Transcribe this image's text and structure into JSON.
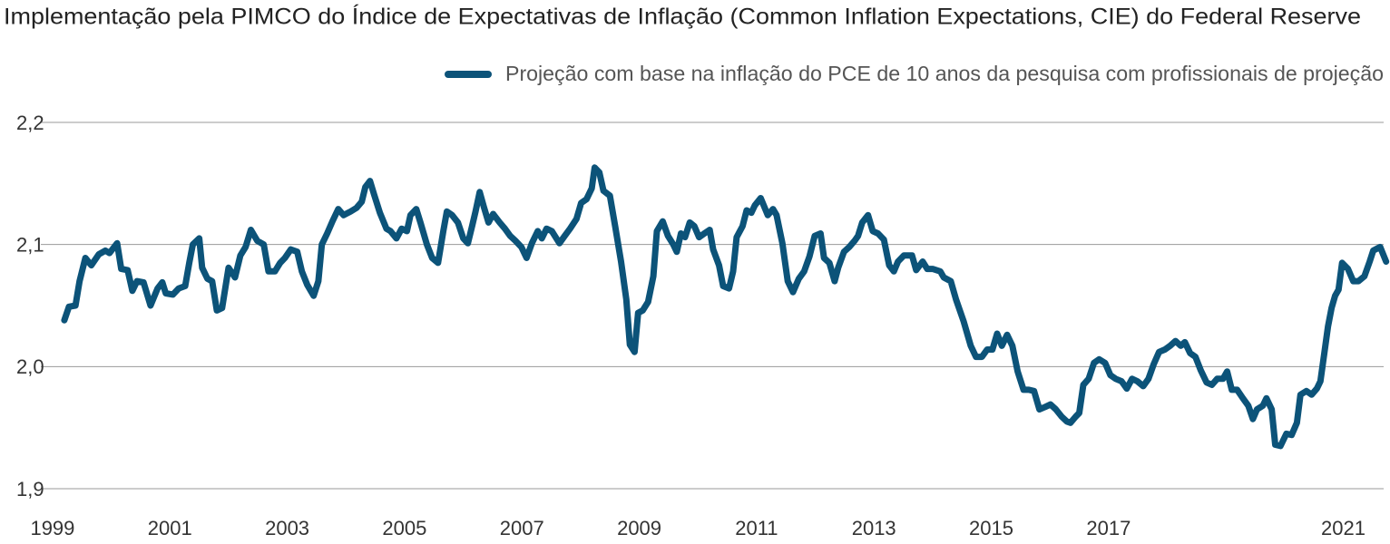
{
  "chart_data": {
    "type": "line",
    "title": "Implementação pela PIMCO do Índice de Expectativas de Inflação (Common Inflation Expectations, CIE) do Federal Reserve",
    "xlim": [
      1998.8,
      2021.75
    ],
    "xticks": [
      1999,
      2001,
      2003,
      2005,
      2007,
      2009,
      2011,
      2013,
      2015,
      2017,
      2021
    ],
    "ylim": [
      1.9,
      2.2
    ],
    "yticks": [
      {
        "value": 1.9,
        "label": "1,9"
      },
      {
        "value": 2.0,
        "label": "2,0"
      },
      {
        "value": 2.1,
        "label": "2,1"
      },
      {
        "value": 2.2,
        "label": "2,2"
      }
    ],
    "grid": true,
    "legend": "top-right",
    "x": [
      1999.2,
      1999.28,
      1999.39,
      1999.46,
      1999.56,
      1999.66,
      1999.79,
      1999.9,
      1999.97,
      2000.1,
      2000.17,
      2000.28,
      2000.36,
      2000.44,
      2000.55,
      2000.67,
      2000.79,
      2000.87,
      2000.93,
      2001.05,
      2001.15,
      2001.26,
      2001.33,
      2001.39,
      2001.5,
      2001.55,
      2001.64,
      2001.72,
      2001.8,
      2001.89,
      2002.0,
      2002.11,
      2002.2,
      2002.29,
      2002.38,
      2002.49,
      2002.6,
      2002.68,
      2002.79,
      2002.88,
      2002.96,
      2003.06,
      2003.17,
      2003.25,
      2003.34,
      2003.45,
      2003.53,
      2003.59,
      2003.68,
      2003.77,
      2003.87,
      2003.96,
      2004.08,
      2004.18,
      2004.27,
      2004.33,
      2004.41,
      2004.48,
      2004.58,
      2004.69,
      2004.76,
      2004.86,
      2004.95,
      2005.04,
      2005.1,
      2005.2,
      2005.27,
      2005.38,
      2005.47,
      2005.57,
      2005.66,
      2005.72,
      2005.81,
      2005.91,
      2006.0,
      2006.08,
      2006.15,
      2006.21,
      2006.28,
      2006.35,
      2006.43,
      2006.51,
      2006.62,
      2006.71,
      2006.8,
      2006.89,
      2006.99,
      2007.08,
      2007.17,
      2007.27,
      2007.34,
      2007.42,
      2007.51,
      2007.64,
      2007.73,
      2007.82,
      2007.93,
      2008.01,
      2008.1,
      2008.19,
      2008.24,
      2008.32,
      2008.39,
      2008.5,
      2008.59,
      2008.69,
      2008.78,
      2008.84,
      2008.92,
      2008.98,
      2009.06,
      2009.15,
      2009.24,
      2009.3,
      2009.4,
      2009.49,
      2009.58,
      2009.64,
      2009.71,
      2009.78,
      2009.86,
      2009.94,
      2010.02,
      2010.11,
      2010.2,
      2010.26,
      2010.36,
      2010.43,
      2010.53,
      2010.6,
      2010.66,
      2010.76,
      2010.83,
      2010.91,
      2010.97,
      2011.07,
      2011.13,
      2011.19,
      2011.28,
      2011.34,
      2011.44,
      2011.53,
      2011.62,
      2011.72,
      2011.81,
      2011.9,
      2011.99,
      2012.09,
      2012.15,
      2012.24,
      2012.33,
      2012.39,
      2012.49,
      2012.58,
      2012.67,
      2012.73,
      2012.8,
      2012.9,
      2012.98,
      2013.07,
      2013.17,
      2013.26,
      2013.34,
      2013.41,
      2013.51,
      2013.65,
      2013.72,
      2013.83,
      2013.91,
      2014.0,
      2014.13,
      2014.19,
      2014.31,
      2014.4,
      2014.53,
      2014.65,
      2014.74,
      2014.84,
      2014.93,
      2015.02,
      2015.1,
      2015.18,
      2015.27,
      2015.36,
      2015.45,
      2015.55,
      2015.64,
      2015.73,
      2015.82,
      2015.92,
      2016.01,
      2016.1,
      2016.2,
      2016.29,
      2016.35,
      2016.44,
      2016.5,
      2016.57,
      2016.66,
      2016.75,
      2016.84,
      2016.94,
      2017.03,
      2017.12,
      2017.22,
      2017.31,
      2017.4,
      2017.49,
      2017.59,
      2017.68,
      2017.77,
      2017.86,
      2017.96,
      2018.05,
      2018.14,
      2018.23,
      2018.3,
      2018.39,
      2018.48,
      2018.57,
      2018.67,
      2018.76,
      2018.85,
      2018.95,
      2019.02,
      2019.1,
      2019.19,
      2019.29,
      2019.38,
      2019.46,
      2019.53,
      2019.63,
      2019.69,
      2019.78,
      2019.84,
      2019.93,
      2020.03,
      2020.12,
      2020.21,
      2020.27,
      2020.37,
      2020.46,
      2020.55,
      2020.61,
      2020.68,
      2020.74,
      2020.8,
      2020.86,
      2020.92,
      2020.98,
      2021.08,
      2021.17,
      2021.26,
      2021.36,
      2021.45,
      2021.51,
      2021.63,
      2021.73
    ],
    "series": [
      {
        "name": "Projeção com base na inflação do PCE de 10 anos da pesquisa com profissionais de projeção",
        "color": "#0c5379",
        "values": [
          2.038,
          2.049,
          2.05,
          2.07,
          2.089,
          2.083,
          2.092,
          2.095,
          2.093,
          2.101,
          2.08,
          2.079,
          2.062,
          2.07,
          2.069,
          2.05,
          2.064,
          2.069,
          2.06,
          2.059,
          2.064,
          2.066,
          2.085,
          2.1,
          2.105,
          2.081,
          2.072,
          2.07,
          2.046,
          2.048,
          2.081,
          2.073,
          2.091,
          2.098,
          2.112,
          2.103,
          2.1,
          2.078,
          2.078,
          2.085,
          2.089,
          2.096,
          2.094,
          2.078,
          2.067,
          2.058,
          2.07,
          2.1,
          2.109,
          2.119,
          2.129,
          2.124,
          2.127,
          2.13,
          2.135,
          2.147,
          2.152,
          2.141,
          2.126,
          2.113,
          2.111,
          2.105,
          2.113,
          2.111,
          2.124,
          2.129,
          2.118,
          2.1,
          2.089,
          2.085,
          2.111,
          2.127,
          2.124,
          2.118,
          2.105,
          2.101,
          2.115,
          2.127,
          2.143,
          2.131,
          2.118,
          2.125,
          2.118,
          2.113,
          2.107,
          2.103,
          2.098,
          2.089,
          2.101,
          2.111,
          2.105,
          2.113,
          2.111,
          2.101,
          2.107,
          2.113,
          2.121,
          2.134,
          2.137,
          2.146,
          2.163,
          2.159,
          2.144,
          2.14,
          2.115,
          2.086,
          2.055,
          2.018,
          2.012,
          2.044,
          2.046,
          2.053,
          2.074,
          2.111,
          2.119,
          2.107,
          2.1,
          2.094,
          2.109,
          2.106,
          2.118,
          2.115,
          2.106,
          2.109,
          2.112,
          2.096,
          2.083,
          2.066,
          2.064,
          2.078,
          2.106,
          2.115,
          2.128,
          2.126,
          2.132,
          2.138,
          2.131,
          2.124,
          2.129,
          2.124,
          2.101,
          2.07,
          2.061,
          2.072,
          2.078,
          2.09,
          2.107,
          2.109,
          2.089,
          2.085,
          2.07,
          2.081,
          2.094,
          2.098,
          2.103,
          2.107,
          2.118,
          2.124,
          2.111,
          2.109,
          2.104,
          2.083,
          2.078,
          2.086,
          2.091,
          2.091,
          2.079,
          2.086,
          2.08,
          2.08,
          2.078,
          2.073,
          2.07,
          2.055,
          2.037,
          2.017,
          2.008,
          2.008,
          2.014,
          2.014,
          2.027,
          2.017,
          2.026,
          2.017,
          1.996,
          1.981,
          1.981,
          1.98,
          1.965,
          1.967,
          1.969,
          1.965,
          1.959,
          1.955,
          1.954,
          1.959,
          1.962,
          1.985,
          1.99,
          2.003,
          2.006,
          2.003,
          1.993,
          1.99,
          1.988,
          1.982,
          1.99,
          1.988,
          1.984,
          1.99,
          2.002,
          2.012,
          2.014,
          2.017,
          2.021,
          2.017,
          2.02,
          2.011,
          2.008,
          1.997,
          1.987,
          1.985,
          1.99,
          1.99,
          1.996,
          1.981,
          1.981,
          1.974,
          1.968,
          1.957,
          1.965,
          1.968,
          1.974,
          1.965,
          1.936,
          1.935,
          1.945,
          1.944,
          1.954,
          1.977,
          1.98,
          1.977,
          1.982,
          1.988,
          2.012,
          2.033,
          2.048,
          2.058,
          2.063,
          2.085,
          2.08,
          2.07,
          2.07,
          2.074,
          2.086,
          2.095,
          2.098,
          2.086
        ]
      }
    ]
  }
}
